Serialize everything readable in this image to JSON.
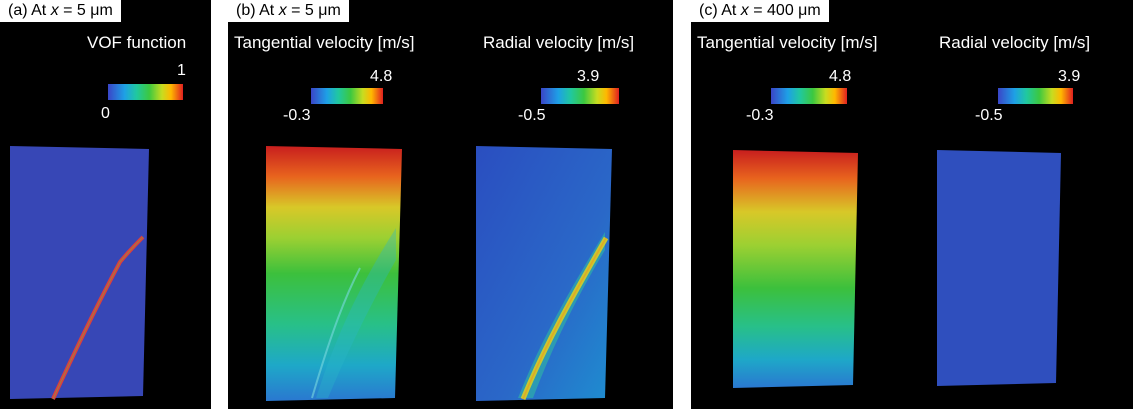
{
  "panels": [
    {
      "title_prefix": "(a) At ",
      "var": "x",
      "title_suffix": " = 5 μm",
      "maps": [
        {
          "label": "VOF function",
          "min": "0",
          "max": "1",
          "pattern": "vof"
        }
      ]
    },
    {
      "title_prefix": "(b) At ",
      "var": "x",
      "title_suffix": " = 5 μm",
      "maps": [
        {
          "label": "Tangential velocity [m/s]",
          "min": "-0.3",
          "max": "4.8",
          "pattern": "tangential"
        },
        {
          "label": "Radial velocity [m/s]",
          "min": "-0.5",
          "max": "3.9",
          "pattern": "radial-jet"
        }
      ]
    },
    {
      "title_prefix": "(c) At ",
      "var": "x",
      "title_suffix": " = 400 μm",
      "maps": [
        {
          "label": "Tangential velocity [m/s]",
          "min": "-0.3",
          "max": "4.8",
          "pattern": "tangential"
        },
        {
          "label": "Radial velocity [m/s]",
          "min": "-0.5",
          "max": "3.9",
          "pattern": "radial-uniform"
        }
      ]
    }
  ],
  "colormap": [
    "#3a45c8",
    "#1ea0e6",
    "#20c8a0",
    "#3cc840",
    "#c8dc20",
    "#ffb800",
    "#e02020"
  ]
}
